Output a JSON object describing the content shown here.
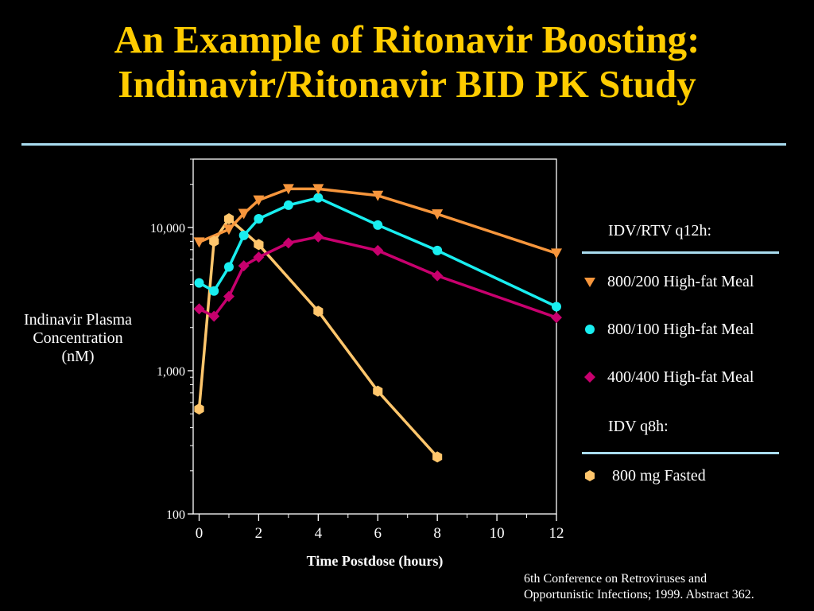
{
  "title": {
    "line1": "An Example of Ritonavir Boosting:",
    "line2": "Indinavir/Ritonavir BID PK Study"
  },
  "legend": {
    "group1_heading": "IDV/RTV q12h:",
    "group2_heading": "IDV q8h:",
    "items": [
      {
        "label": "800/200 High-fat Meal",
        "color": "#f7963c",
        "marker": "triangle-down-icon"
      },
      {
        "label": "800/100 High-fat Meal",
        "color": "#19eef0",
        "marker": "circle-icon"
      },
      {
        "label": "400/400 High-fat Meal",
        "color": "#c8006e",
        "marker": "diamond-icon"
      },
      {
        "label": "800 mg Fasted",
        "color": "#ffc66c",
        "marker": "hexagon-icon"
      }
    ]
  },
  "footnote": {
    "line1": "6th Conference on Retroviruses and",
    "line2": "Opportunistic Infections; 1999. Abstract 362."
  },
  "chart_data": {
    "type": "line",
    "xlabel": "Time Postdose (hours)",
    "ylabel": "Indinavir Plasma Concentration (nM)",
    "xlim": [
      -0.2,
      12
    ],
    "ylim": [
      100,
      30000
    ],
    "yscale": "log",
    "x_ticks": [
      0,
      2,
      4,
      6,
      8,
      10,
      12
    ],
    "y_ticks": [
      100,
      1000,
      10000
    ],
    "y_tick_labels": [
      "100",
      "1,000",
      "10,000"
    ],
    "grid": false,
    "legend_position": "right",
    "series": [
      {
        "name": "800/200 High-fat Meal",
        "x": [
          0,
          1,
          1.5,
          2,
          3,
          4,
          6,
          8,
          12
        ],
        "y": [
          7900,
          9700,
          12500,
          15500,
          18600,
          18600,
          16700,
          12400,
          6600
        ]
      },
      {
        "name": "800/100 High-fat Meal",
        "x": [
          0,
          0.5,
          1,
          1.5,
          2,
          3,
          4,
          6,
          8,
          12
        ],
        "y": [
          4100,
          3600,
          5300,
          8800,
          11500,
          14300,
          16100,
          10400,
          6900,
          2800
        ]
      },
      {
        "name": "400/400 High-fat Meal",
        "x": [
          0,
          0.5,
          1,
          1.5,
          2,
          3,
          4,
          6,
          8,
          12
        ],
        "y": [
          2700,
          2400,
          3300,
          5400,
          6200,
          7800,
          8600,
          6900,
          4600,
          2350
        ]
      },
      {
        "name": "800 mg Fasted",
        "x": [
          0,
          0.5,
          1,
          2,
          4,
          6,
          8
        ],
        "y": [
          540,
          8000,
          11500,
          7600,
          2600,
          720,
          250
        ]
      }
    ]
  }
}
